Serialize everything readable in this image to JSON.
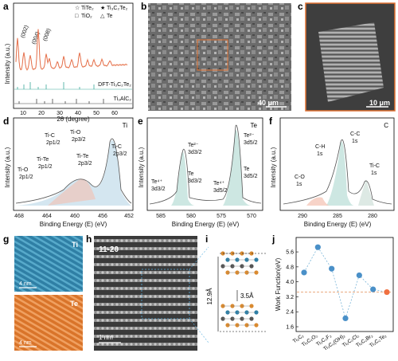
{
  "panel_labels": {
    "a": "a",
    "b": "b",
    "c": "c",
    "d": "d",
    "e": "e",
    "f": "f",
    "g": "g",
    "h": "h",
    "i": "i",
    "j": "j"
  },
  "panel_a": {
    "ylabel": "Intensity (a.u.)",
    "xlabel": "2θ (degree)",
    "x_ticks": [
      "10",
      "20",
      "30",
      "40",
      "50",
      "60"
    ],
    "legend": [
      {
        "symbol": "☆",
        "label": "TiTe₂"
      },
      {
        "symbol": "★",
        "label": "Ti₃C₂Te₂"
      },
      {
        "symbol": "□",
        "label": "TiO₂"
      },
      {
        "symbol": "△",
        "label": "Te"
      }
    ],
    "peak_labels": [
      "(002)",
      "(004)",
      "(008)"
    ],
    "ref_labels": [
      "DFT-Ti₃C₂Te₂",
      "Ti₃AlC₂"
    ],
    "colors": {
      "data": "#f0a07c",
      "fit": "#e06040",
      "ref1": "#3aa89a",
      "ref2": "#444444"
    }
  },
  "panel_b": {
    "scale_label": "40 μm"
  },
  "panel_c": {
    "scale_label": "10 μm"
  },
  "panel_d": {
    "element": "Ti",
    "xlabel": "Binding Energy (E) (eV)",
    "ylabel": "Intensity (a.u.)",
    "x_ticks": [
      "468",
      "464",
      "460",
      "456",
      "452"
    ],
    "annotations": [
      {
        "main": "Ti-O",
        "sub": "2p1/2"
      },
      {
        "main": "Ti-Te",
        "sub": "2p1/2"
      },
      {
        "main": "Ti-C",
        "sub": "2p1/2"
      },
      {
        "main": "Ti-O",
        "sub": "2p3/2"
      },
      {
        "main": "Ti-Te",
        "sub": "2p3/2"
      },
      {
        "main": "Ti-C",
        "sub": "2p3/2"
      }
    ]
  },
  "panel_e": {
    "element": "Te",
    "xlabel": "Binding Energy (E) (eV)",
    "ylabel": "Intensity (a.u.)",
    "x_ticks": [
      "585",
      "580",
      "575",
      "570"
    ],
    "annotations": [
      {
        "main": "Te⁴⁺",
        "sub": "3d3/2"
      },
      {
        "main": "Te²⁻",
        "sub": "3d3/2"
      },
      {
        "main": "Te",
        "sub": "3d3/2"
      },
      {
        "main": "Te⁴⁺",
        "sub": "3d5/2"
      },
      {
        "main": "Te²⁻",
        "sub": "3d5/2"
      },
      {
        "main": "Te",
        "sub": "3d5/2"
      }
    ]
  },
  "panel_f": {
    "element": "C",
    "xlabel": "Binding Energy (E) (eV)",
    "ylabel": "Intensity (a.u.)",
    "x_ticks": [
      "290",
      "285",
      "280"
    ],
    "annotations": [
      {
        "main": "C-O",
        "sub": "1s"
      },
      {
        "main": "C-H",
        "sub": "1s"
      },
      {
        "main": "C-C",
        "sub": "1s"
      },
      {
        "main": "Ti-C",
        "sub": "1s"
      }
    ]
  },
  "panel_g": {
    "labels": [
      "Ti",
      "Te"
    ],
    "scale_labels": [
      "4 nm",
      "4 nm"
    ]
  },
  "panel_h": {
    "zone_axis": "11-20",
    "scale_label": "1 nm"
  },
  "panel_i": {
    "dims": [
      "12.9Å",
      "3.5Å"
    ]
  },
  "chart_data": {
    "type": "scatter",
    "ylabel": "Work Function(eV)",
    "categories": [
      "Ti₃C₂",
      "Ti₃C₂O₂",
      "Ti₃C₂F₂",
      "Ti₃C₂(OH)₂",
      "Ti₃C₂Cl₂",
      "Ti₃C₂Br₂",
      "Ti₃C₂Te₂"
    ],
    "values": [
      4.5,
      5.85,
      4.7,
      2.05,
      4.35,
      3.6,
      3.45
    ],
    "highlight_index": 6,
    "reference_line": 3.45,
    "y_ticks": [
      1.6,
      2.4,
      3.2,
      4.0,
      4.8,
      5.6
    ],
    "ylim": [
      1.6,
      6.2
    ],
    "colors": {
      "point": "#4a90c8",
      "highlight": "#f07040",
      "line": "#7ab5d8",
      "ref": "#e8a070"
    }
  }
}
